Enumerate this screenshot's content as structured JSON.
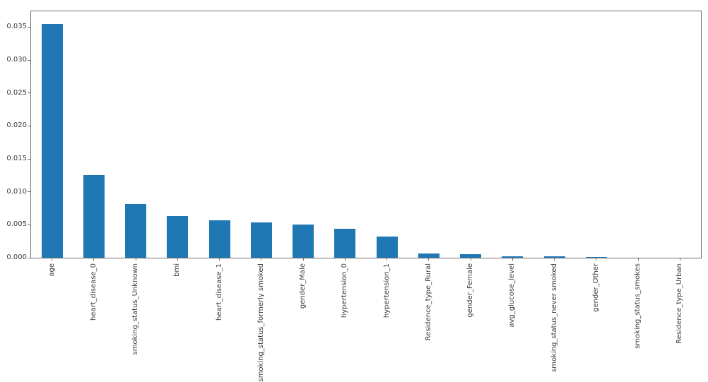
{
  "chart_data": {
    "type": "bar",
    "title": "",
    "xlabel": "",
    "ylabel": "",
    "categories": [
      "age",
      "heart_disease_0",
      "smoking_status_Unknown",
      "bmi",
      "heart_disease_1",
      "smoking_status_formerly smoked",
      "gender_Male",
      "hypertension_0",
      "hypertension_1",
      "Residence_type_Rural",
      "gender_Female",
      "avg_glucose_level",
      "smoking_status_never smoked",
      "gender_Other",
      "smoking_status_smokes",
      "Residence_type_Urban"
    ],
    "values": [
      0.0355,
      0.0125,
      0.0081,
      0.0063,
      0.0057,
      0.0054,
      0.005,
      0.0044,
      0.0032,
      0.00065,
      0.0005,
      0.00022,
      0.0002,
      0.0001,
      3e-05,
      1e-05
    ],
    "ylim": [
      0,
      0.0374
    ],
    "ytick_labels": [
      "0.000",
      "0.005",
      "0.010",
      "0.015",
      "0.020",
      "0.025",
      "0.030",
      "0.035"
    ],
    "bar_color": "#1f77b4",
    "bar_width_fraction": 0.5,
    "x_label_rotation": 90,
    "grid": false,
    "legend": null
  }
}
